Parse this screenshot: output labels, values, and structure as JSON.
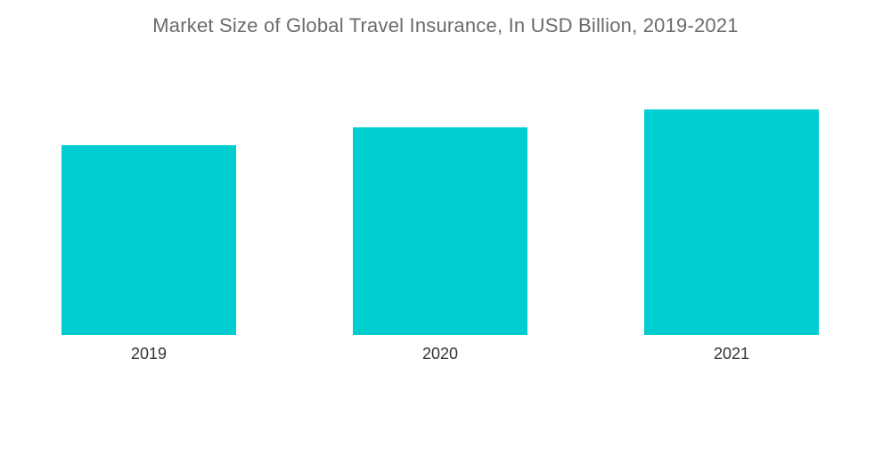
{
  "chart_data": {
    "type": "bar",
    "title": "Market Size of Global Travel Insurance, In USD Billion, 2019-2021",
    "xlabel": "",
    "ylabel": "",
    "categories": [
      "2019",
      "2020",
      "2021"
    ],
    "series": [
      {
        "values": [
          17.0,
          18.6,
          20.2
        ]
      }
    ],
    "ylim": [
      0,
      30
    ],
    "grid": false,
    "legend": "none",
    "bar_color": "#00CED1"
  }
}
